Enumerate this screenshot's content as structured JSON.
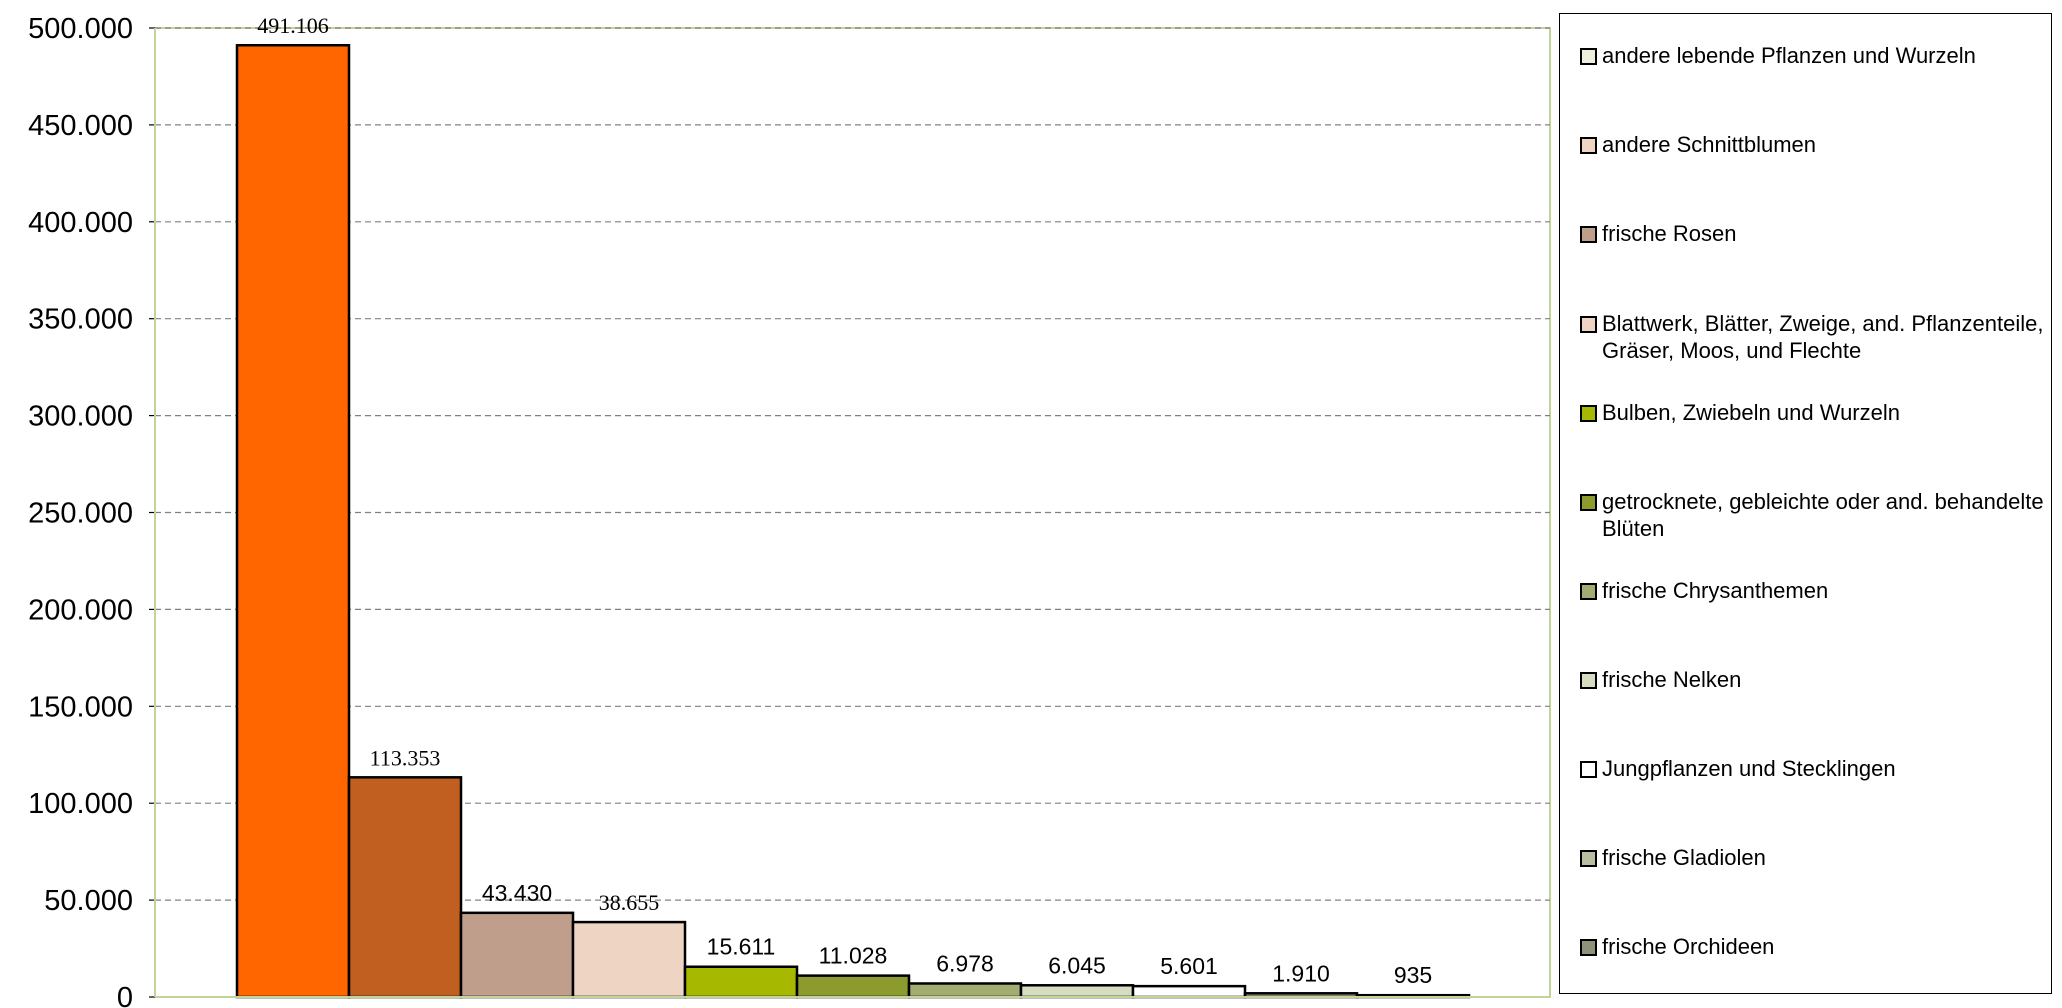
{
  "chart_data": {
    "type": "bar",
    "categories": [
      "andere lebende Pflanzen und Wurzeln",
      "andere Schnittblumen",
      "frische Rosen",
      "Blattwerk, Blätter, Zweige, and. Pflanzenteile, Gräser, Moos, und Flechte",
      "Bulben, Zwiebeln und Wurzeln",
      "getrocknete, gebleichte oder and. behandelte Blüten",
      "frische Chrysanthemen",
      "frische Nelken",
      "Jungpflanzen und Stecklingen",
      "frische Gladiolen",
      "frische Orchideen"
    ],
    "values": [
      491106,
      113353,
      43430,
      38655,
      15611,
      11028,
      6978,
      6045,
      5601,
      1910,
      935
    ],
    "data_labels": [
      "491.106",
      "113.353",
      "43.430",
      "38.655",
      "15.611",
      "11.028",
      "6.978",
      "6.045",
      "5.601",
      "1.910",
      "935"
    ],
    "colors": [
      "#FF6600",
      "#C05F20",
      "#BF9E8C",
      "#EED5C3",
      "#A7B800",
      "#8D9A2D",
      "#A5AC72",
      "#D6DCC0",
      "#FFFFFF",
      "#9FA184",
      "#7F7F6B"
    ],
    "legend_swatch_colors": [
      "#EEEEDC",
      "#EED5C3",
      "#BF9E8C",
      "#EED5C3",
      "#A7B800",
      "#8D9A2D",
      "#A5AC72",
      "#D6DCC0",
      "#FFFFFF",
      "#B8BEA0",
      "#8F9178"
    ],
    "y_ticks": [
      "0",
      "50.000",
      "100.000",
      "150.000",
      "200.000",
      "250.000",
      "300.000",
      "350.000",
      "400.000",
      "450.000",
      "500.000"
    ],
    "ylim": [
      0,
      500000
    ],
    "title": "",
    "xlabel": "",
    "ylabel": "",
    "grid": true,
    "legend_position": "right",
    "plot_border_color": "#C3D49A"
  }
}
